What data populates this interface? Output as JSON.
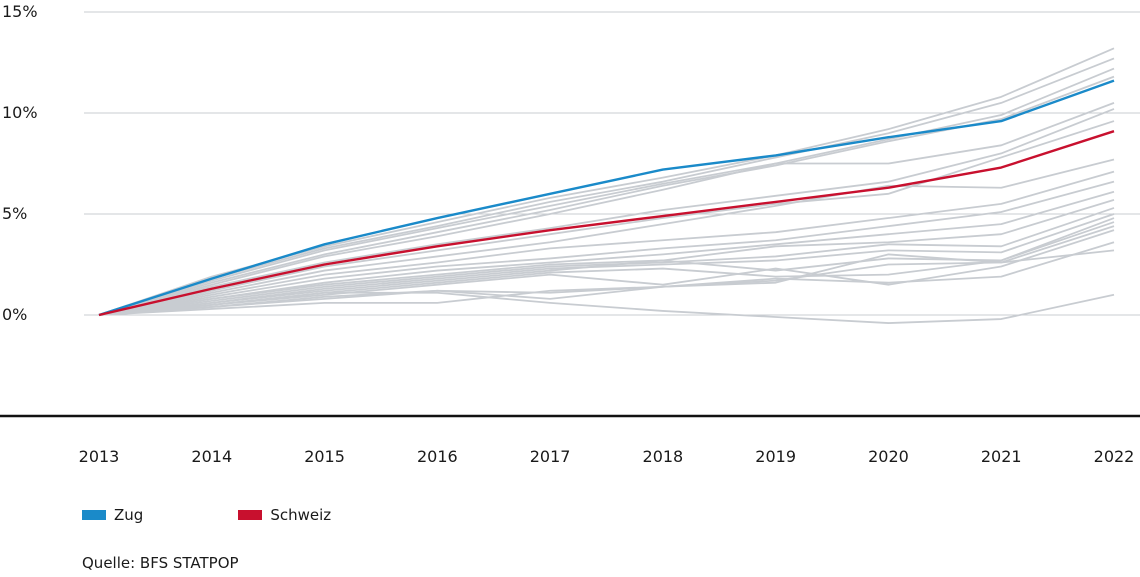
{
  "chart_data": {
    "type": "line",
    "x": [
      "2013",
      "2014",
      "2015",
      "2016",
      "2017",
      "2018",
      "2019",
      "2020",
      "2021",
      "2022"
    ],
    "yticks": [
      0,
      5,
      10,
      15
    ],
    "ytick_labels": [
      "0%",
      "5%",
      "10%",
      "15%"
    ],
    "ylim": [
      -5,
      15
    ],
    "highlight_series": [
      {
        "name": "Zug",
        "color": "#1a8ac9",
        "values": [
          0,
          1.8,
          3.5,
          4.8,
          6.0,
          7.2,
          7.9,
          8.8,
          9.6,
          11.6
        ]
      },
      {
        "name": "Schweiz",
        "color": "#c8102e",
        "values": [
          0,
          1.3,
          2.5,
          3.4,
          4.2,
          4.9,
          5.6,
          6.3,
          7.3,
          9.1
        ]
      }
    ],
    "background_series_color": "#c8ccd1",
    "background_series": [
      [
        0,
        1.9,
        3.4,
        4.6,
        5.8,
        6.8,
        7.9,
        9.2,
        10.8,
        13.2
      ],
      [
        0,
        1.8,
        3.3,
        4.4,
        5.6,
        6.6,
        7.8,
        9.0,
        10.5,
        12.7
      ],
      [
        0,
        1.7,
        3.2,
        4.3,
        5.4,
        6.5,
        7.5,
        8.7,
        9.9,
        12.2
      ],
      [
        0,
        1.6,
        3.0,
        4.1,
        5.2,
        6.4,
        7.4,
        8.6,
        9.7,
        11.8
      ],
      [
        0,
        1.5,
        2.9,
        3.9,
        5.0,
        6.2,
        7.5,
        7.5,
        8.4,
        10.5
      ],
      [
        0,
        1.4,
        2.6,
        3.5,
        4.3,
        5.2,
        5.9,
        6.6,
        8.0,
        10.2
      ],
      [
        0,
        1.2,
        2.4,
        3.2,
        4.0,
        4.8,
        5.5,
        6.0,
        7.8,
        9.6
      ],
      [
        0,
        1.1,
        2.2,
        2.9,
        3.6,
        4.5,
        5.4,
        6.4,
        6.3,
        7.7
      ],
      [
        0,
        1.0,
        2.0,
        2.6,
        3.3,
        3.7,
        4.1,
        4.8,
        5.5,
        7.1
      ],
      [
        0,
        0.9,
        1.8,
        2.4,
        2.8,
        3.3,
        3.7,
        4.4,
        5.1,
        6.6
      ],
      [
        0,
        0.8,
        1.6,
        2.2,
        2.6,
        3.0,
        3.5,
        4.0,
        4.5,
        6.1
      ],
      [
        0,
        0.8,
        1.5,
        2.0,
        2.5,
        2.7,
        3.4,
        3.6,
        4.0,
        5.7
      ],
      [
        0,
        0.7,
        1.4,
        1.9,
        2.4,
        2.6,
        2.9,
        3.5,
        3.4,
        5.3
      ],
      [
        0,
        0.6,
        1.3,
        1.8,
        2.3,
        2.5,
        2.7,
        3.2,
        3.1,
        5.0
      ],
      [
        0,
        0.6,
        1.2,
        1.7,
        2.2,
        2.7,
        2.2,
        2.8,
        2.7,
        4.8
      ],
      [
        0,
        0.5,
        1.1,
        1.6,
        2.1,
        2.3,
        1.9,
        2.0,
        2.7,
        4.6
      ],
      [
        0,
        0.5,
        1.0,
        1.5,
        2.0,
        1.5,
        2.3,
        1.5,
        2.4,
        4.2
      ],
      [
        0,
        0.4,
        0.9,
        1.2,
        1.1,
        1.4,
        1.8,
        1.6,
        1.9,
        3.6
      ],
      [
        0,
        0.4,
        0.8,
        1.2,
        0.8,
        1.4,
        1.7,
        2.5,
        2.6,
        3.2
      ],
      [
        0,
        0.3,
        0.6,
        0.6,
        1.2,
        1.4,
        1.6,
        3.0,
        2.6,
        4.4
      ],
      [
        0,
        0.5,
        1.1,
        1.1,
        0.6,
        0.2,
        -0.1,
        -0.4,
        -0.2,
        1.0
      ]
    ],
    "legend": [
      {
        "label": "Zug",
        "color": "#1a8ac9"
      },
      {
        "label": "Schweiz",
        "color": "#c8102e"
      }
    ],
    "source": "Quelle: BFS STATPOP"
  }
}
